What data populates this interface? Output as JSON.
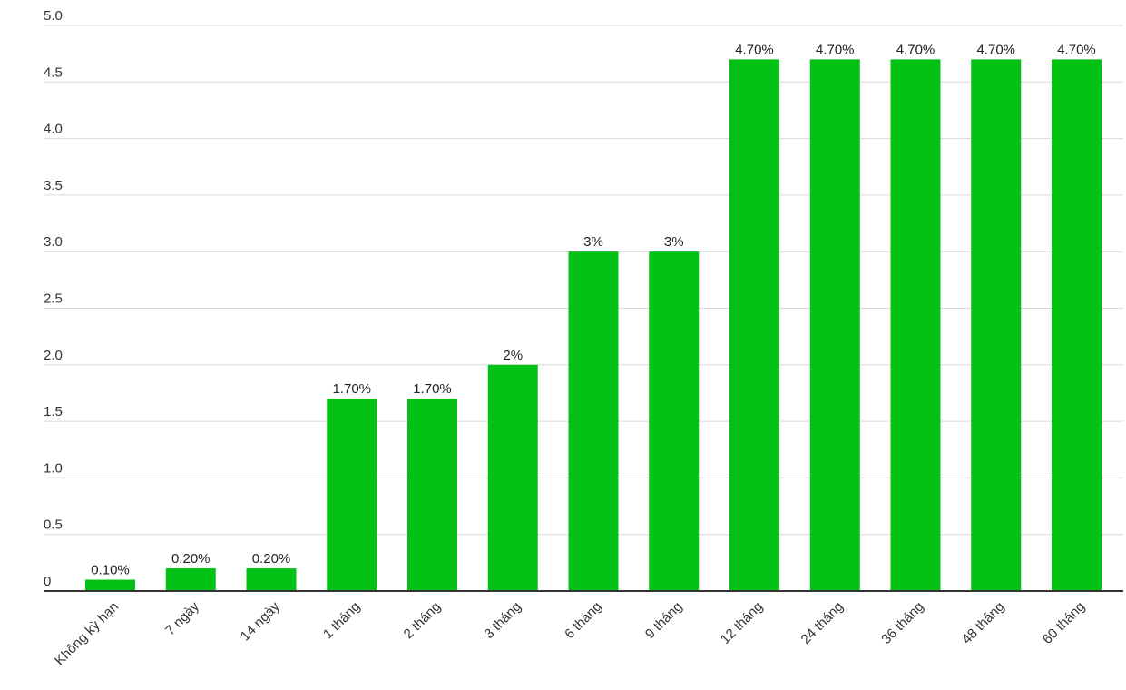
{
  "chart_data": {
    "type": "bar",
    "title": "",
    "xlabel": "",
    "ylabel": "",
    "ylim": [
      0,
      5
    ],
    "yticks": [
      0,
      0.5,
      1,
      1.5,
      2,
      2.5,
      3,
      3.5,
      4,
      4.5,
      5
    ],
    "ytick_labels": [
      "0",
      "0.5",
      "1.0",
      "1.5",
      "2.0",
      "2.5",
      "3.0",
      "3.5",
      "4.0",
      "4.5",
      "5.0"
    ],
    "grid": true,
    "legend": "none",
    "bar_color": "#04c116",
    "categories": [
      "Không kỳ hạn",
      "7 ngày",
      "14 ngày",
      "1 tháng",
      "2 tháng",
      "3 tháng",
      "6 tháng",
      "9 tháng",
      "12 tháng",
      "24 tháng",
      "36 tháng",
      "48 tháng",
      "60 tháng"
    ],
    "values": [
      0.1,
      0.2,
      0.2,
      1.7,
      1.7,
      2,
      3,
      3,
      4.7,
      4.7,
      4.7,
      4.7,
      4.7
    ],
    "data_labels": [
      "0.10%",
      "0.20%",
      "0.20%",
      "1.70%",
      "1.70%",
      "2%",
      "3%",
      "3%",
      "4.70%",
      "4.70%",
      "4.70%",
      "4.70%",
      "4.70%"
    ]
  }
}
